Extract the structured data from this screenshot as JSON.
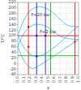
{
  "chart_data": {
    "type": "line",
    "xlabel": "x",
    "ylabel": "T/°C",
    "xlim": [
      0.0,
      1.0
    ],
    "ylim": [
      -40,
      220
    ],
    "xticks": [
      {
        "value": 0.0,
        "label": "0.0"
      },
      0.1,
      0.2,
      0.3,
      0.4,
      0.5,
      0.6,
      0.7,
      0.8,
      0.9,
      {
        "value": 1.0,
        "label": "1.0"
      }
    ],
    "yticks": [
      -40,
      -20,
      0,
      20,
      40,
      60,
      80,
      100,
      120,
      140,
      160,
      180,
      200,
      220
    ],
    "grid": true,
    "x": [
      0.0,
      0.05,
      0.1,
      0.15,
      0.2,
      0.25,
      0.3,
      0.35,
      0.4,
      0.45,
      0.5,
      0.55,
      0.6,
      0.65,
      0.7,
      0.75,
      0.8,
      0.85,
      0.9,
      0.95,
      1.0
    ],
    "series": [
      {
        "color": "#55ccee",
        "values": [
          60,
          32,
          10,
          -5,
          -15,
          -18,
          -14,
          -8,
          -1,
          6,
          13,
          20,
          27,
          35,
          42,
          50,
          58,
          65,
          72,
          79,
          87
        ]
      },
      {
        "color": "#55ccee",
        "values": [
          60,
          88,
          108,
          122,
          132,
          138,
          141,
          141,
          139,
          135,
          130,
          122,
          114,
          106,
          98,
          94,
          91,
          89,
          88,
          87,
          87
        ]
      },
      {
        "color": "#55ccee",
        "values": [
          100,
          76,
          58,
          44,
          34,
          28,
          26,
          27,
          30,
          35,
          42,
          50,
          58,
          67,
          76,
          86,
          96,
          107,
          118,
          126,
          133
        ]
      },
      {
        "color": "#55ccee",
        "values": [
          100,
          132,
          157,
          176,
          190,
          198,
          203,
          205,
          204,
          200,
          195,
          188,
          179,
          169,
          158,
          148,
          140,
          135,
          134,
          133,
          133
        ]
      }
    ],
    "annotations": [
      {
        "text": "P=2 bar",
        "x": 0.36,
        "y": 108
      },
      {
        "text": "P=20 bar",
        "x": 0.22,
        "y": 170
      }
    ],
    "vlines": [
      {
        "x": 0.175,
        "color": "#dd0000"
      },
      {
        "x": 0.31,
        "color": "#0000cc"
      },
      {
        "x": 0.455,
        "color": "#0000cc"
      },
      {
        "x": 0.54,
        "color": "#00aa00"
      },
      {
        "x": 0.94,
        "color": "#dd0000"
      }
    ],
    "hlines": [
      {
        "y": 100,
        "color": "#dd0000"
      },
      {
        "y": 28,
        "color": "#00aa00"
      }
    ],
    "markers": [
      {
        "x": 0.175,
        "y": 60,
        "color": "#dd0000"
      },
      {
        "x": 0.175,
        "y": 132,
        "color": "#dd0000"
      },
      {
        "x": 0.31,
        "y": 26,
        "color": "#0000cc"
      },
      {
        "x": 0.31,
        "y": 100,
        "color": "#0000cc"
      },
      {
        "x": 0.455,
        "y": 100,
        "color": "#0000cc"
      },
      {
        "x": 0.54,
        "y": 28,
        "color": "#00aa00"
      },
      {
        "x": 0.94,
        "y": 79,
        "color": "#dd0000"
      }
    ]
  }
}
